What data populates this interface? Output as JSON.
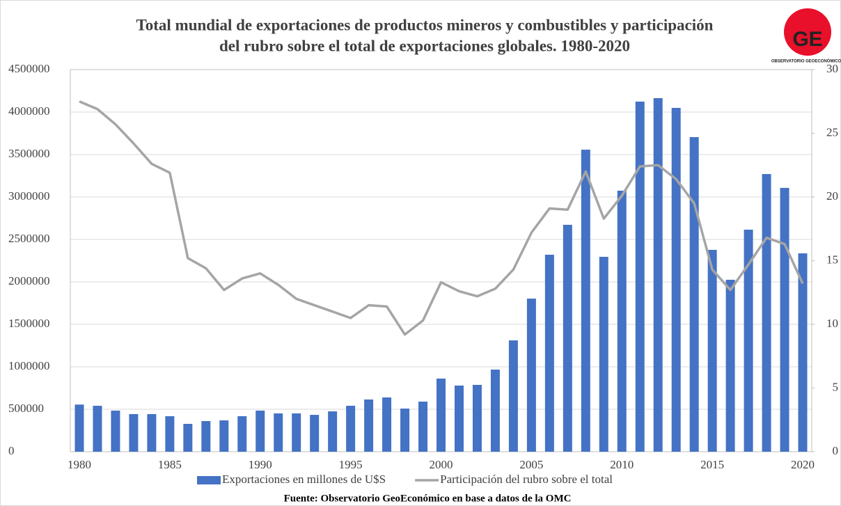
{
  "chart_data": {
    "type": "bar_line",
    "title": [
      "Total mundial de exportaciones de productos mineros y combustibles y participación",
      "del rubro sobre el total de exportaciones globales. 1980-2020"
    ],
    "logo": {
      "text": "GE",
      "subtitle": "OBSERVATORIO GEOECONÓMICO"
    },
    "source": "Fuente: Observatorio GeoEconómico en base a datos de la OMC",
    "categories": [
      1980,
      null,
      null,
      null,
      null,
      1985,
      null,
      null,
      null,
      null,
      1990,
      null,
      null,
      null,
      null,
      1995,
      null,
      null,
      null,
      null,
      2000,
      null,
      null,
      null,
      null,
      2005,
      null,
      null,
      null,
      null,
      2010,
      null,
      null,
      null,
      null,
      2015,
      null,
      null,
      null,
      null,
      2020
    ],
    "series": [
      {
        "name": "Exportaciones en millones de U$S",
        "color": "#4472c4",
        "kind": "bar",
        "values": [
          555000,
          541000,
          484000,
          443000,
          443000,
          418000,
          328000,
          361000,
          369000,
          418000,
          484000,
          451000,
          451000,
          434000,
          475000,
          541000,
          615000,
          639000,
          508000,
          590000,
          861000,
          779000,
          787000,
          967000,
          1311000,
          1803000,
          2320000,
          2672000,
          3557000,
          2295000,
          3074000,
          4123000,
          4164000,
          4049000,
          3705000,
          2377000,
          2025000,
          2615000,
          3270000,
          3107000,
          2336000
        ]
      },
      {
        "name": "Participación del rubro sobre el total",
        "color": "#a5a5a5",
        "kind": "line",
        "axis": "y2",
        "values": [
          27.5,
          26.9,
          25.7,
          24.2,
          22.6,
          21.9,
          15.2,
          14.4,
          12.7,
          13.6,
          14.0,
          13.1,
          12.0,
          11.5,
          11.0,
          10.5,
          11.5,
          11.4,
          9.2,
          10.3,
          13.3,
          12.6,
          12.2,
          12.8,
          14.3,
          17.2,
          19.1,
          19.0,
          22.0,
          18.3,
          20.1,
          22.4,
          22.5,
          21.4,
          19.5,
          14.3,
          12.7,
          14.7,
          16.8,
          16.3,
          13.2
        ]
      }
    ],
    "ylim": [
      0,
      4500000
    ],
    "yticks": [
      0,
      500000,
      1000000,
      1500000,
      2000000,
      2500000,
      3000000,
      3500000,
      4000000,
      4500000
    ],
    "y2lim": [
      0,
      30
    ],
    "y2ticks": [
      0,
      5,
      10,
      15,
      20,
      25,
      30
    ],
    "grid": true,
    "legend": "bottom"
  }
}
